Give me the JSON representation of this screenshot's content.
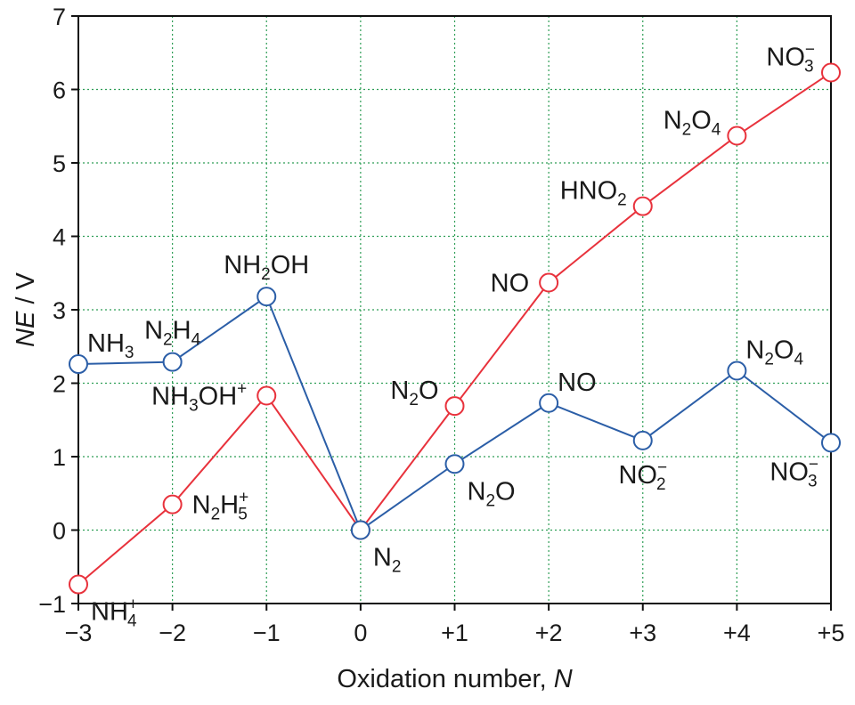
{
  "chart_data": {
    "type": "line",
    "xlabel": "Oxidation number, ",
    "xlabel_var": "N",
    "ylabel_var": "NE",
    "ylabel_unit": " / V",
    "xlim": [
      -3,
      5
    ],
    "ylim": [
      -1,
      7
    ],
    "x_ticks": [
      {
        "value": -3,
        "label": "−3"
      },
      {
        "value": -2,
        "label": "−2"
      },
      {
        "value": -1,
        "label": "−1"
      },
      {
        "value": 0,
        "label": "0"
      },
      {
        "value": 1,
        "label": "+1"
      },
      {
        "value": 2,
        "label": "+2"
      },
      {
        "value": 3,
        "label": "+3"
      },
      {
        "value": 4,
        "label": "+4"
      },
      {
        "value": 5,
        "label": "+5"
      }
    ],
    "y_ticks": [
      {
        "value": -1,
        "label": "−1"
      },
      {
        "value": 0,
        "label": "0"
      },
      {
        "value": 1,
        "label": "1"
      },
      {
        "value": 2,
        "label": "2"
      },
      {
        "value": 3,
        "label": "3"
      },
      {
        "value": 4,
        "label": "4"
      },
      {
        "value": 5,
        "label": "5"
      },
      {
        "value": 6,
        "label": "6"
      },
      {
        "value": 7,
        "label": "7"
      }
    ],
    "grid": true,
    "series": [
      {
        "color": "#e8323c",
        "points": [
          {
            "x": -3,
            "y": -0.74,
            "label": [
              {
                "t": "NH"
              },
              {
                "t": "+",
                "sup": true
              },
              {
                "t": "4",
                "sub": true
              }
            ],
            "pos": "below-right"
          },
          {
            "x": -2,
            "y": 0.35,
            "label": [
              {
                "t": "N"
              },
              {
                "t": "2",
                "sub": true
              },
              {
                "t": "H"
              },
              {
                "t": "+",
                "sup": true
              },
              {
                "t": "5",
                "sub": true
              }
            ],
            "pos": "right"
          },
          {
            "x": -1,
            "y": 1.83,
            "label": [
              {
                "t": "NH"
              },
              {
                "t": "3",
                "sub": true
              },
              {
                "t": "OH"
              },
              {
                "t": "+",
                "sup": true
              }
            ],
            "pos": "left"
          },
          {
            "x": 0,
            "y": 0,
            "label": [],
            "pos": "none"
          },
          {
            "x": 1,
            "y": 1.69,
            "label": [
              {
                "t": "N"
              },
              {
                "t": "2",
                "sub": true
              },
              {
                "t": "O"
              }
            ],
            "pos": "upper-left"
          },
          {
            "x": 2,
            "y": 3.37,
            "label": [
              {
                "t": "NO"
              }
            ],
            "pos": "left"
          },
          {
            "x": 3,
            "y": 4.41,
            "label": [
              {
                "t": "HNO"
              },
              {
                "t": "2",
                "sub": true
              }
            ],
            "pos": "upper-left"
          },
          {
            "x": 4,
            "y": 5.37,
            "label": [
              {
                "t": "N"
              },
              {
                "t": "2",
                "sub": true
              },
              {
                "t": "O"
              },
              {
                "t": "4",
                "sub": true
              }
            ],
            "pos": "upper-left"
          },
          {
            "x": 5,
            "y": 6.23,
            "label": [
              {
                "t": "NO"
              },
              {
                "t": "−",
                "sup": true
              },
              {
                "t": "3",
                "sub": true
              }
            ],
            "pos": "upper-left"
          }
        ]
      },
      {
        "color": "#2b5ea7",
        "points": [
          {
            "x": -3,
            "y": 2.26,
            "label": [
              {
                "t": "NH"
              },
              {
                "t": "3",
                "sub": true
              }
            ],
            "pos": "upper-right"
          },
          {
            "x": -2,
            "y": 2.29,
            "label": [
              {
                "t": "N"
              },
              {
                "t": "2",
                "sub": true
              },
              {
                "t": "H"
              },
              {
                "t": "4",
                "sub": true
              }
            ],
            "pos": "above"
          },
          {
            "x": -1,
            "y": 3.18,
            "label": [
              {
                "t": "NH"
              },
              {
                "t": "2",
                "sub": true
              },
              {
                "t": "OH"
              }
            ],
            "pos": "above"
          },
          {
            "x": 0,
            "y": 0,
            "label": [
              {
                "t": "N"
              },
              {
                "t": "2",
                "sub": true
              }
            ],
            "pos": "below-right"
          },
          {
            "x": 1,
            "y": 0.9,
            "label": [
              {
                "t": "N"
              },
              {
                "t": "2",
                "sub": true
              },
              {
                "t": "O"
              }
            ],
            "pos": "below-right"
          },
          {
            "x": 2,
            "y": 1.73,
            "label": [
              {
                "t": "NO"
              }
            ],
            "pos": "upper-right"
          },
          {
            "x": 3,
            "y": 1.22,
            "label": [
              {
                "t": "NO"
              },
              {
                "t": "−",
                "sup": true
              },
              {
                "t": "2",
                "sub": true
              }
            ],
            "pos": "below"
          },
          {
            "x": 4,
            "y": 2.17,
            "label": [
              {
                "t": "N"
              },
              {
                "t": "2",
                "sub": true
              },
              {
                "t": "O"
              },
              {
                "t": "4",
                "sub": true
              }
            ],
            "pos": "upper-right"
          },
          {
            "x": 5,
            "y": 1.19,
            "label": [
              {
                "t": "NO"
              },
              {
                "t": "−",
                "sup": true
              },
              {
                "t": "3",
                "sub": true
              }
            ],
            "pos": "below-left"
          }
        ]
      }
    ]
  }
}
